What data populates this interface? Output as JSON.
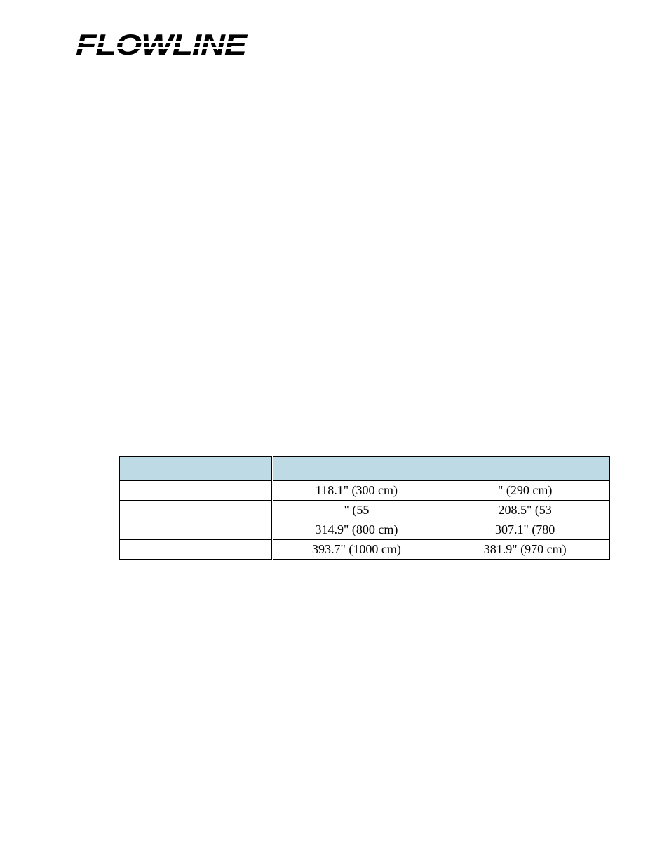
{
  "logo": {
    "text": "FLOWLINE"
  },
  "table": {
    "header_bg": "#bedae4",
    "border_color": "#000000",
    "columns": [
      "",
      "",
      ""
    ],
    "rows": [
      [
        "",
        "118.1\" (300 cm)",
        "\" (290 cm)"
      ],
      [
        "",
        "\" (55",
        "208.5\" (53"
      ],
      [
        "",
        "314.9\" (800 cm)",
        "307.1\" (780"
      ],
      [
        "",
        "393.7\" (1000 cm)",
        "381.9\" (970 cm)"
      ]
    ]
  }
}
